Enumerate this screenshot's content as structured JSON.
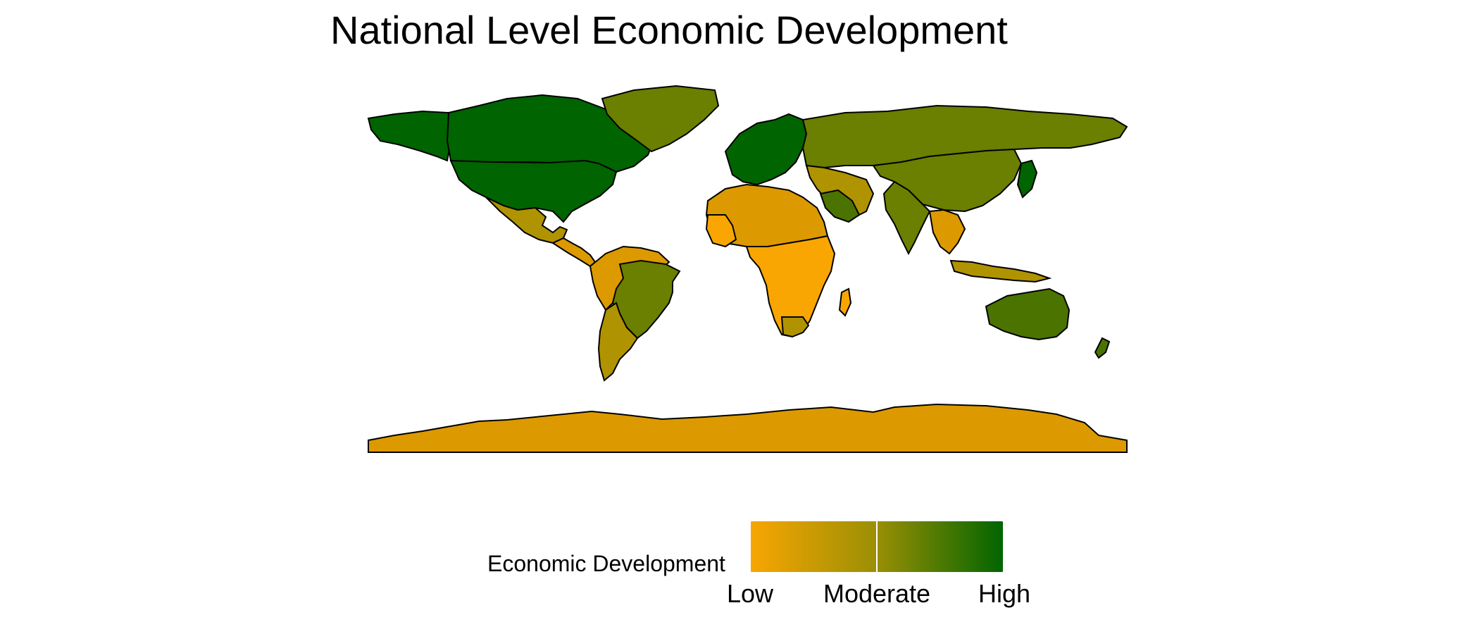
{
  "title": "National Level Economic Development",
  "legend": {
    "title": "Economic Development",
    "labels": [
      "Low",
      "Moderate",
      "High"
    ],
    "colors": {
      "low": "#f9a602",
      "moderate": "#9a8f05",
      "high": "#006400"
    }
  },
  "colors": {
    "land_outline": "#000000",
    "background": "#ffffff",
    "low": "#f9a602",
    "low_mid": "#dc9a00",
    "mid": "#b09300",
    "mid_high": "#6b7f00",
    "high_mid": "#4a7300",
    "high": "#006400"
  }
}
